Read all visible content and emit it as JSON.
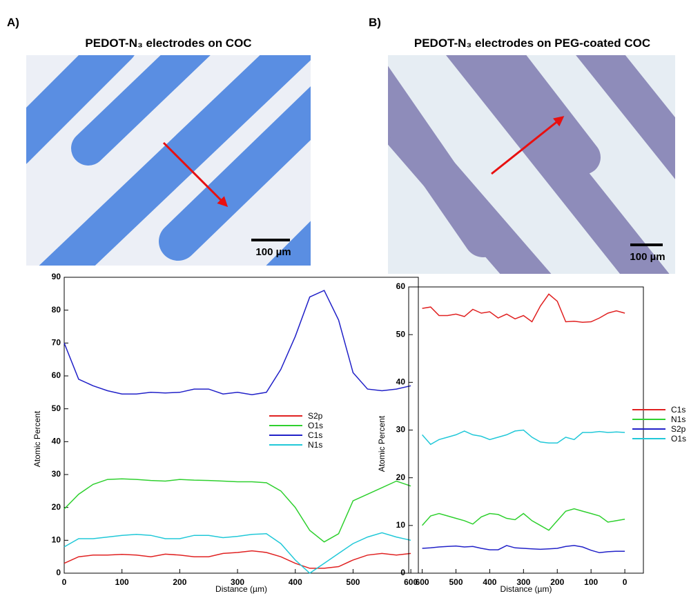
{
  "panels": [
    {
      "label": "A)",
      "title": "PEDOT-N₃ electrodes on COC",
      "scale_bar": "100 µm"
    },
    {
      "label": "B)",
      "title": "PEDOT-N₃ electrodes on PEG-coated COC",
      "scale_bar": "100 µm"
    }
  ],
  "chart_data": [
    {
      "type": "line",
      "xlabel": "Distance (µm)",
      "ylabel": "Atomic Percent",
      "x": [
        0,
        25,
        50,
        75,
        100,
        125,
        150,
        175,
        200,
        225,
        250,
        275,
        300,
        325,
        350,
        375,
        400,
        425,
        450,
        475,
        500,
        525,
        550,
        575,
        600
      ],
      "xlim": [
        0,
        613
      ],
      "xticks": [
        0,
        100,
        200,
        300,
        400,
        500,
        600
      ],
      "ylim": [
        0,
        90
      ],
      "yticks": [
        0,
        10,
        20,
        30,
        40,
        50,
        60,
        70,
        80,
        90
      ],
      "legend": "right",
      "series": [
        {
          "name": "S2p",
          "color": "#e02020",
          "values": [
            3,
            5,
            5.5,
            5.5,
            5.7,
            5.5,
            5,
            5.8,
            5.5,
            5,
            5,
            6,
            6.3,
            6.8,
            6.3,
            5,
            3,
            1.5,
            1.5,
            2,
            4,
            5.5,
            6,
            5.5,
            6
          ]
        },
        {
          "name": "O1s",
          "color": "#2ed02e",
          "values": [
            19.5,
            24,
            27,
            28.5,
            28.7,
            28.5,
            28.2,
            28,
            28.5,
            28.3,
            28.2,
            28,
            27.8,
            27.8,
            27.5,
            25,
            20,
            13,
            9.5,
            12,
            22,
            24,
            26,
            28,
            26.5
          ]
        },
        {
          "name": "C1s",
          "color": "#2020c8",
          "values": [
            70,
            59,
            57,
            55.5,
            54.5,
            54.5,
            55,
            54.8,
            55,
            56,
            56,
            54.5,
            55,
            54.3,
            55,
            62,
            72,
            84,
            86,
            77,
            61,
            56,
            55.5,
            56,
            57
          ]
        },
        {
          "name": "N1s",
          "color": "#20c8d8",
          "values": [
            8,
            10.5,
            10.5,
            11,
            11.5,
            11.8,
            11.5,
            10.5,
            10.5,
            11.5,
            11.5,
            10.8,
            11.2,
            11.8,
            12,
            9,
            4,
            0,
            3,
            6,
            9,
            11,
            12.3,
            11,
            10
          ]
        }
      ]
    },
    {
      "type": "line",
      "xlabel": "Distance (µm)",
      "ylabel": "Atomic Percent",
      "x": [
        600,
        575,
        550,
        525,
        500,
        475,
        450,
        425,
        400,
        375,
        350,
        325,
        300,
        275,
        250,
        225,
        200,
        175,
        150,
        125,
        100,
        75,
        50,
        25,
        0
      ],
      "xlim": [
        640,
        -55
      ],
      "xticks": [
        600,
        500,
        400,
        300,
        200,
        100,
        0
      ],
      "ylim": [
        0,
        60
      ],
      "yticks": [
        0,
        10,
        20,
        30,
        40,
        50,
        60
      ],
      "legend": "right",
      "series": [
        {
          "name": "C1s",
          "color": "#e02020",
          "values": [
            55.5,
            55.8,
            54,
            54,
            54.3,
            53.8,
            55.3,
            54.5,
            54.8,
            53.5,
            54.3,
            53.3,
            54,
            52.7,
            56,
            58.5,
            57,
            52.7,
            52.8,
            52.6,
            52.7,
            53.5,
            54.5,
            55,
            54.5
          ]
        },
        {
          "name": "N1s",
          "color": "#2ed02e",
          "values": [
            10,
            12,
            12.5,
            12,
            11.5,
            11,
            10.3,
            11.8,
            12.5,
            12.3,
            11.5,
            11.2,
            12.5,
            11,
            10,
            9,
            11,
            13,
            13.5,
            13,
            12.5,
            12,
            10.7,
            11,
            11.3
          ]
        },
        {
          "name": "S2p",
          "color": "#2020c8",
          "values": [
            5.2,
            5.3,
            5.5,
            5.6,
            5.7,
            5.5,
            5.6,
            5.2,
            4.9,
            4.9,
            5.8,
            5.3,
            5.2,
            5.1,
            5,
            5.1,
            5.2,
            5.6,
            5.8,
            5.5,
            4.8,
            4.3,
            4.5,
            4.6,
            4.6
          ]
        },
        {
          "name": "O1s",
          "color": "#20c8d8",
          "values": [
            29,
            27,
            28,
            28.5,
            29,
            29.8,
            29,
            28.7,
            28,
            28.5,
            29,
            29.8,
            30,
            28.5,
            27.5,
            27.3,
            27.3,
            28.5,
            28,
            29.5,
            29.5,
            29.7,
            29.5,
            29.6,
            29.5
          ]
        }
      ]
    }
  ]
}
